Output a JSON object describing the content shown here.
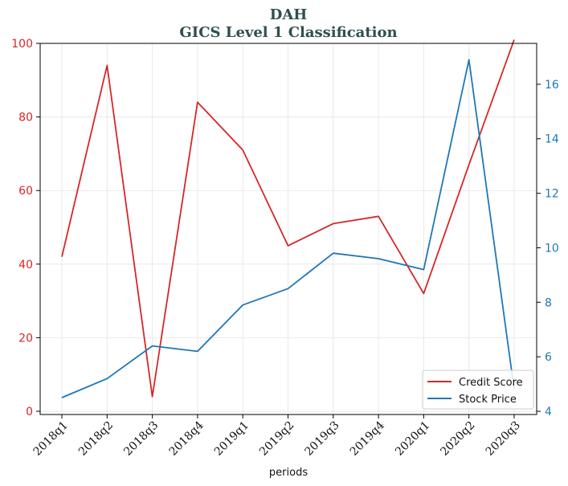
{
  "chart_data": {
    "type": "line",
    "title": "DAH",
    "subtitle": "GICS Level 1 Classification",
    "xlabel": "periods",
    "categories": [
      "2018q1",
      "2018q2",
      "2018q3",
      "2018q4",
      "2019q1",
      "2019q2",
      "2019q3",
      "2019q4",
      "2020q1",
      "2020q2",
      "2020q3"
    ],
    "y_left": {
      "lim": [
        0,
        100
      ],
      "ticks": [
        0,
        20,
        40,
        60,
        80,
        100
      ],
      "color": "#d62728"
    },
    "y_right": {
      "lim": [
        4,
        17.5
      ],
      "ticks": [
        4,
        6,
        8,
        10,
        12,
        14,
        16
      ],
      "color": "#1f77b4"
    },
    "series": [
      {
        "name": "Credit Score",
        "axis": "left",
        "color": "#d62728",
        "values": [
          42,
          94,
          4,
          84,
          71,
          45,
          51,
          53,
          32,
          67,
          101
        ]
      },
      {
        "name": "Stock Price",
        "axis": "right",
        "color": "#1f77b4",
        "values": [
          4.5,
          5.2,
          6.4,
          6.2,
          7.9,
          8.5,
          9.8,
          9.6,
          9.2,
          16.9,
          4.8
        ]
      }
    ],
    "grid": true,
    "legend": "bottom-right"
  }
}
